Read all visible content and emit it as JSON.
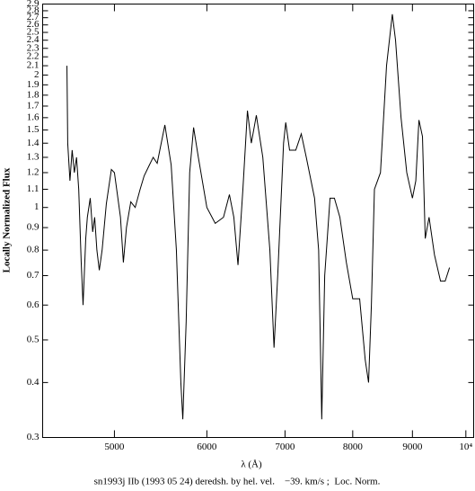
{
  "chart_data": {
    "type": "line",
    "caption": "sn1993j IIb (1993 05 24) deredsh. by hel. vel.    −39. km/s ;  Loc. Norm.",
    "xlabel": "λ (Å)",
    "ylabel": "Locally Normalized Flux",
    "xscale": "log",
    "yscale": "log",
    "grid": false,
    "xlim": [
      4340,
      10155
    ],
    "ylim": [
      0.3,
      2.9
    ],
    "xticks": [
      5000,
      6000,
      7000,
      8000,
      9000,
      {
        "value": 10000,
        "label": "10⁴"
      }
    ],
    "yticks": [
      0.3,
      0.4,
      0.5,
      0.6,
      0.7,
      0.8,
      0.9,
      1,
      1.1,
      1.2,
      1.3,
      1.4,
      1.5,
      1.6,
      1.7,
      1.8,
      1.9,
      2,
      2.1,
      2.2,
      2.3,
      2.4,
      2.5,
      2.6,
      2.7,
      2.8,
      2.9
    ],
    "color": "#000000",
    "x": [
      4553,
      4560,
      4580,
      4600,
      4620,
      4640,
      4660,
      4683,
      4700,
      4725,
      4740,
      4767,
      4790,
      4809,
      4830,
      4853,
      4880,
      4921,
      4970,
      5000,
      5060,
      5089,
      5120,
      5164,
      5209,
      5260,
      5302,
      5350,
      5397,
      5440,
      5523,
      5592,
      5650,
      5700,
      5722,
      5760,
      5800,
      5845,
      5900,
      6000,
      6100,
      6200,
      6273,
      6328,
      6380,
      6442,
      6500,
      6550,
      6615,
      6700,
      6794,
      6850,
      6900,
      6980,
      7010,
      7063,
      7150,
      7228,
      7300,
      7420,
      7480,
      7526,
      7570,
      7650,
      7716,
      7800,
      7900,
      8000,
      8110,
      8200,
      8254,
      8300,
      8350,
      8450,
      8552,
      8650,
      8705,
      8800,
      8900,
      9000,
      9060,
      9116,
      9180,
      9230,
      9300,
      9400,
      9513,
      9600,
      9683
    ],
    "values": [
      2.1,
      1.4,
      1.15,
      1.35,
      1.2,
      1.3,
      1.1,
      0.75,
      0.6,
      0.85,
      0.95,
      1.05,
      0.88,
      0.95,
      0.8,
      0.72,
      0.8,
      1.02,
      1.22,
      1.2,
      0.95,
      0.75,
      0.9,
      1.03,
      1.0,
      1.1,
      1.18,
      1.24,
      1.3,
      1.26,
      1.54,
      1.25,
      0.8,
      0.4,
      0.33,
      0.55,
      1.2,
      1.52,
      1.3,
      1.0,
      0.92,
      0.95,
      1.07,
      0.95,
      0.74,
      1.1,
      1.66,
      1.4,
      1.62,
      1.3,
      0.8,
      0.48,
      0.7,
      1.4,
      1.56,
      1.35,
      1.35,
      1.47,
      1.3,
      1.05,
      0.8,
      0.33,
      0.7,
      1.05,
      1.05,
      0.95,
      0.75,
      0.62,
      0.62,
      0.45,
      0.4,
      0.6,
      1.1,
      1.2,
      2.1,
      2.75,
      2.4,
      1.6,
      1.2,
      1.05,
      1.15,
      1.58,
      1.45,
      0.85,
      0.95,
      0.78,
      0.68,
      0.68,
      0.73
    ]
  }
}
